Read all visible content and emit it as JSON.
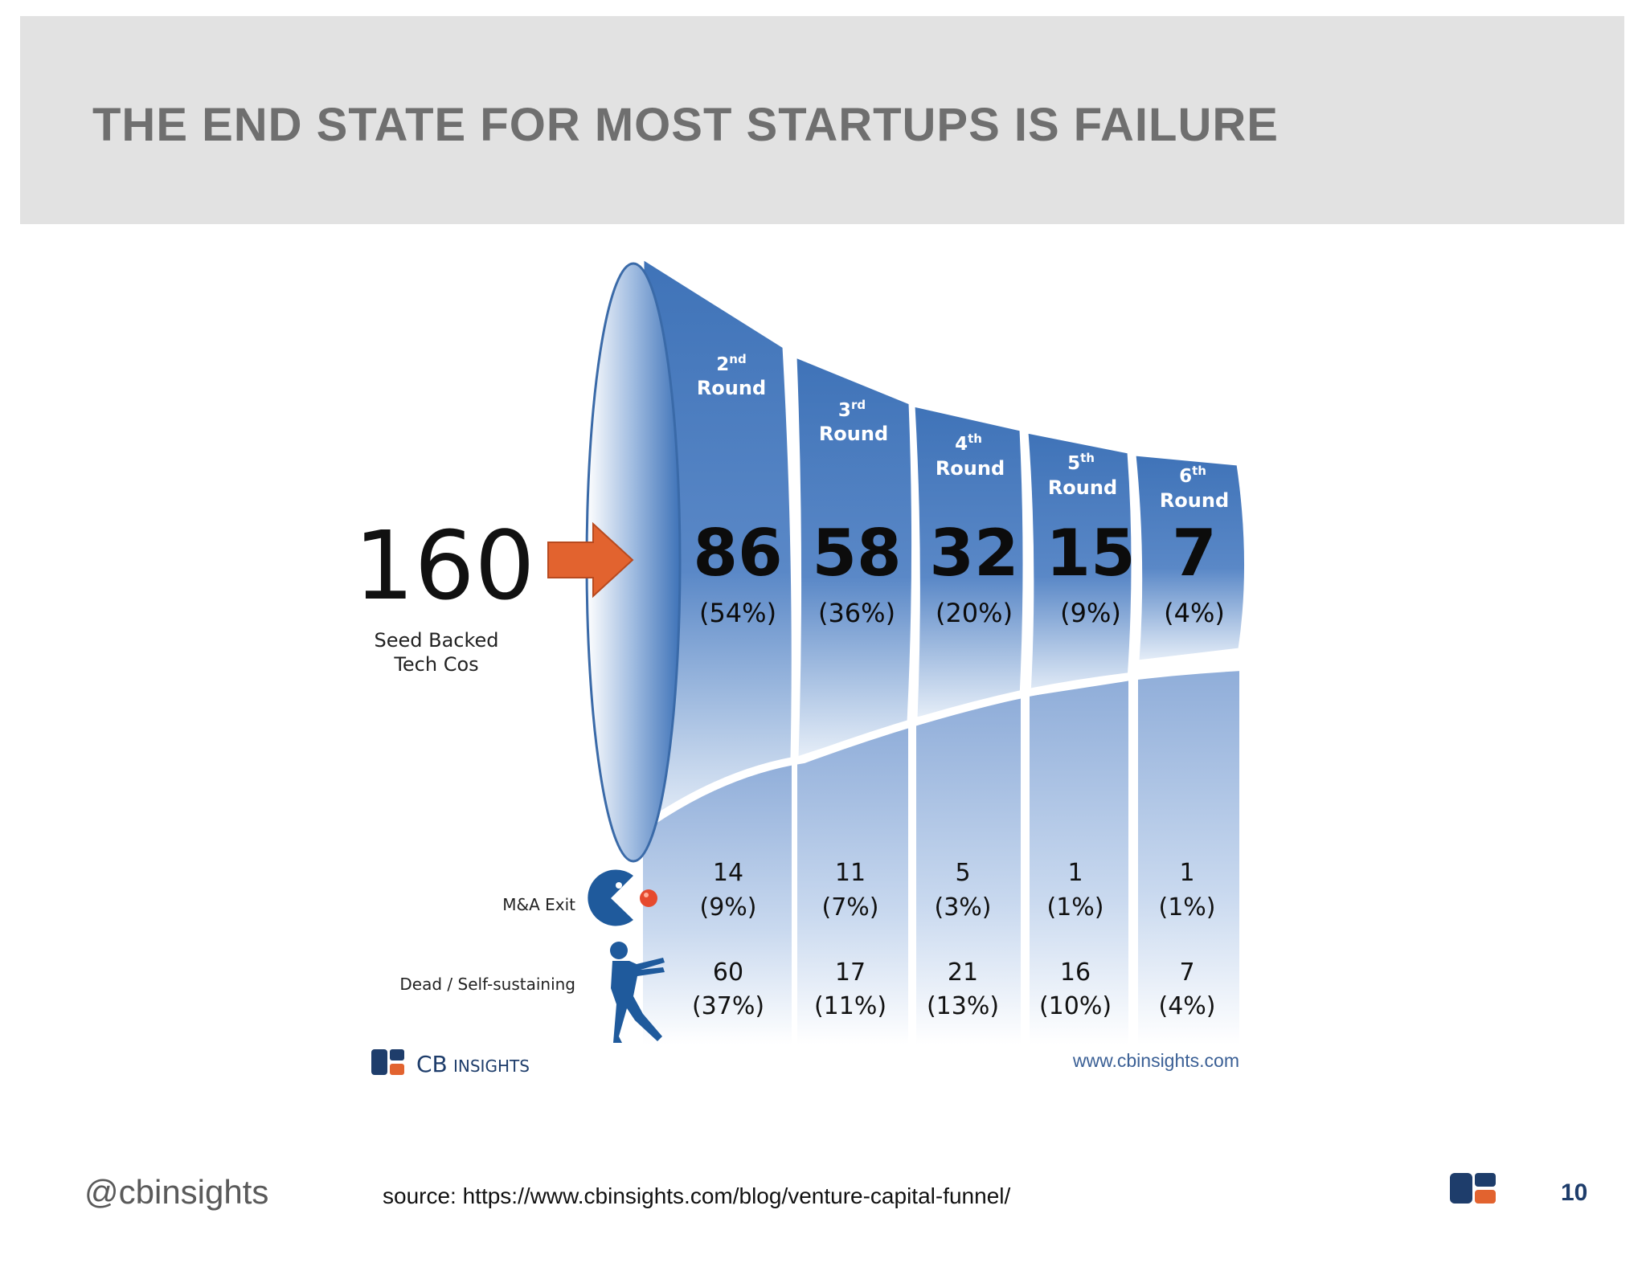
{
  "slide": {
    "title": "THE END STATE FOR MOST STARTUPS IS FAILURE",
    "handle": "@cbinsights",
    "source": "source: https://www.cbinsights.com/blog/venture-capital-funnel/",
    "page_number": "10"
  },
  "graphic": {
    "seed": {
      "value": "160",
      "label_line1": "Seed Backed",
      "label_line2": "Tech Cos"
    },
    "rounds": [
      {
        "ordinal": "2",
        "suffix": "nd",
        "label": "Round",
        "value": "86",
        "pct": "(54%)",
        "exit_value": "14",
        "exit_pct": "(9%)",
        "dead_value": "60",
        "dead_pct": "(37%)"
      },
      {
        "ordinal": "3",
        "suffix": "rd",
        "label": "Round",
        "value": "58",
        "pct": "(36%)",
        "exit_value": "11",
        "exit_pct": "(7%)",
        "dead_value": "17",
        "dead_pct": "(11%)"
      },
      {
        "ordinal": "4",
        "suffix": "th",
        "label": "Round",
        "value": "32",
        "pct": "(20%)",
        "exit_value": "5",
        "exit_pct": "(3%)",
        "dead_value": "21",
        "dead_pct": "(13%)"
      },
      {
        "ordinal": "5",
        "suffix": "th",
        "label": "Round",
        "value": "15",
        "pct": "(9%)",
        "exit_value": "1",
        "exit_pct": "(1%)",
        "dead_value": "16",
        "dead_pct": "(10%)"
      },
      {
        "ordinal": "6",
        "suffix": "th",
        "label": "Round",
        "value": "7",
        "pct": "(4%)",
        "exit_value": "1",
        "exit_pct": "(1%)",
        "dead_value": "7",
        "dead_pct": "(4%)"
      }
    ],
    "row_labels": {
      "exit": "M&A Exit",
      "dead": "Dead / Self-sustaining"
    },
    "brand": {
      "name": "CB",
      "tagline": "INSIGHTS"
    },
    "website": "www.cbinsights.com",
    "colors": {
      "funnel_blue": "#3f73b8",
      "arrow_orange": "#e2632f",
      "dark_navy": "#1e3d6b",
      "title_gray": "#6f6f6f"
    },
    "icons": [
      "arrow-right-icon",
      "pacman-icon",
      "zombie-icon",
      "cb-logo-icon"
    ]
  }
}
